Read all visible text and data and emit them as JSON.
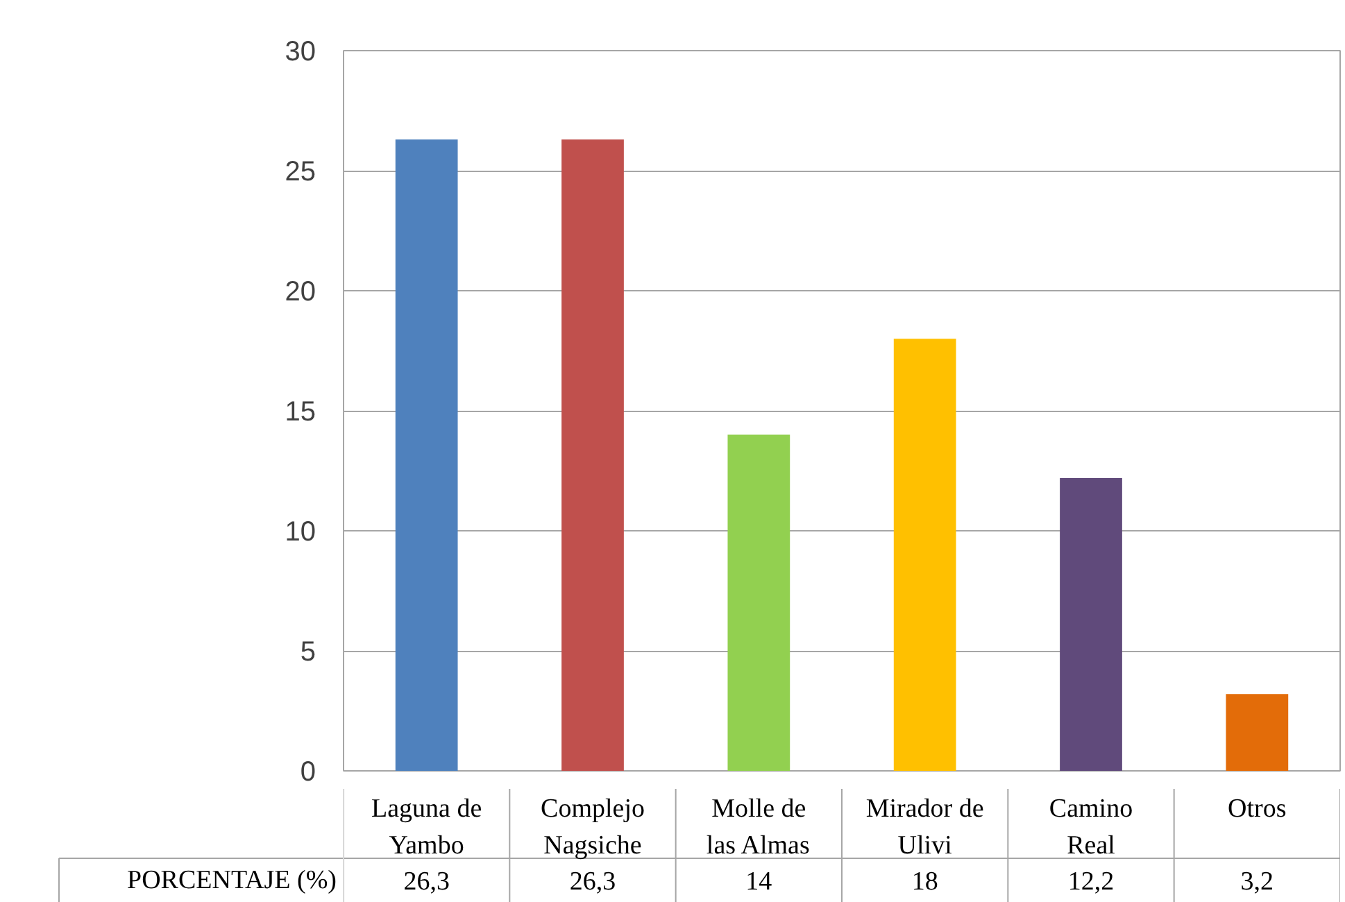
{
  "chart_data": {
    "type": "bar",
    "categories": [
      "Laguna de Yambo",
      "Complejo Nagsiche",
      "Molle de las Almas",
      "Mirador de Ulivi",
      "Camino Real",
      "Otros"
    ],
    "series": [
      {
        "name": "PORCENTAJE (%)",
        "values": [
          26.3,
          26.3,
          14,
          18,
          12.2,
          3.2
        ],
        "colors": [
          "#4f81bd",
          "#c0504d",
          "#92d050",
          "#ffc000",
          "#604a7b",
          "#e36c09"
        ],
        "value_labels": [
          "26,3",
          "26,3",
          "14",
          "18",
          "12,2",
          "3,2"
        ]
      }
    ],
    "ylim": [
      0,
      30
    ],
    "yticks": [
      0,
      5,
      10,
      15,
      20,
      25,
      30
    ],
    "grid": "y",
    "data_labels": true
  }
}
